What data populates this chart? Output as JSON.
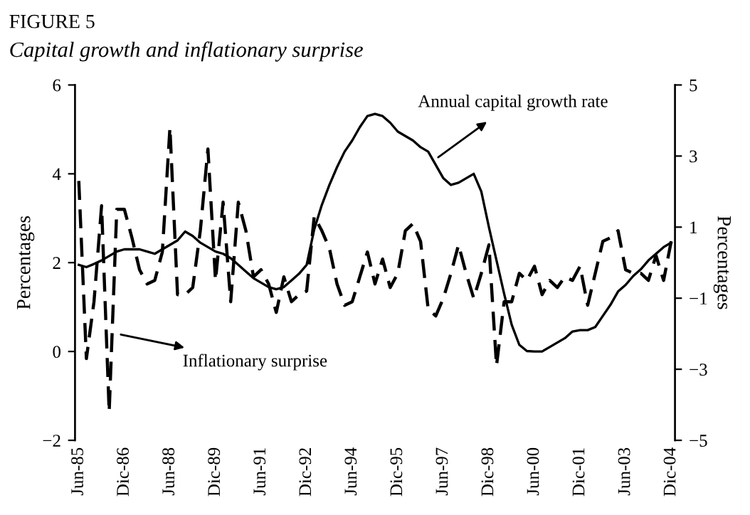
{
  "chart_data": {
    "type": "line",
    "title": "FIGURE 5",
    "subtitle": "Capital growth and inflationary surprise",
    "ylabel": "Percentages",
    "y2label": "Percentages",
    "categories": [
      "Jun-85",
      null,
      null,
      null,
      null,
      null,
      "Dic-86",
      null,
      null,
      null,
      null,
      null,
      "Jun-88",
      null,
      null,
      null,
      null,
      null,
      "Dic-89",
      null,
      null,
      null,
      null,
      null,
      "Jun-91",
      null,
      null,
      null,
      null,
      null,
      "Dic-92",
      null,
      null,
      null,
      null,
      null,
      "Jun-94",
      null,
      null,
      null,
      null,
      null,
      "Dic-95",
      null,
      null,
      null,
      null,
      null,
      "Jun-97",
      null,
      null,
      null,
      null,
      null,
      "Dic-98",
      null,
      null,
      null,
      null,
      null,
      "Jun-00",
      null,
      null,
      null,
      null,
      null,
      "Dic-01",
      null,
      null,
      null,
      null,
      null,
      "Jun-03",
      null,
      null,
      null,
      null,
      null,
      "Dic-04"
    ],
    "series": [
      {
        "color": "#000000",
        "line_style": "solid",
        "values": [
          1.95,
          1.9,
          1.97,
          2.05,
          2.15,
          2.25,
          2.3,
          2.3,
          2.3,
          2.25,
          2.2,
          2.3,
          2.4,
          2.5,
          2.7,
          2.6,
          2.45,
          2.35,
          2.25,
          2.2,
          2.1,
          1.95,
          1.8,
          1.65,
          1.55,
          1.45,
          1.4,
          1.45,
          1.6,
          1.75,
          1.95,
          2.75,
          3.3,
          3.75,
          4.15,
          4.5,
          4.75,
          5.05,
          5.3,
          5.35,
          5.3,
          5.15,
          4.95,
          4.85,
          4.75,
          4.6,
          4.5,
          4.2,
          3.9,
          3.75,
          3.8,
          3.9,
          4.0,
          3.6,
          2.8,
          2.05,
          1.3,
          0.6,
          0.15,
          0.01,
          0,
          0,
          0.1,
          0.2,
          0.3,
          0.45,
          0.48,
          0.48,
          0.55,
          0.8,
          1.05,
          1.35,
          1.5,
          1.7,
          1.85,
          2.05,
          2.2,
          2.35,
          2.45
        ]
      },
      {
        "color": "#000000",
        "line_style": "dashed",
        "axis": "y2",
        "values": [
          2.3,
          -2.7,
          -1.1,
          1.6,
          -4.2,
          1.5,
          1.5,
          0.7,
          -0.2,
          -0.6,
          -0.5,
          0.3,
          3.8,
          -0.9,
          -0.9,
          -0.7,
          0.9,
          3.2,
          -0.5,
          1.7,
          -1.1,
          1.7,
          0.9,
          -0.4,
          -0.2,
          -0.6,
          -1.4,
          -0.4,
          -1.1,
          -0.9,
          -0.8,
          1.3,
          0.9,
          0.4,
          -0.6,
          -1.2,
          -1.1,
          -0.4,
          0.3,
          -0.6,
          0.1,
          -0.7,
          -0.3,
          0.9,
          1.1,
          0.6,
          -1.3,
          -1.5,
          -1.0,
          -0.3,
          0.5,
          -0.3,
          -1.0,
          -0.3,
          0.5,
          -2.9,
          -1.1,
          -1.1,
          -0.3,
          -0.5,
          -0.1,
          -0.9,
          -0.5,
          -0.7,
          -0.4,
          -0.5,
          -0.1,
          -1.2,
          -0.3,
          0.6,
          0.7,
          0.9,
          -0.2,
          -0.3,
          -0.3,
          -0.5,
          0.2,
          -0.5,
          0.6
        ]
      }
    ],
    "ylim": [
      -2,
      6
    ],
    "yticks": [
      -2,
      0,
      2,
      4,
      6
    ],
    "y2lim": [
      -5,
      5
    ],
    "y2ticks": [
      -5,
      -3,
      -1,
      1,
      3,
      5
    ],
    "annotations": [
      "Annual capital growth rate",
      "Inflationary surprise"
    ],
    "grid": false,
    "legend": false,
    "marker": "none"
  }
}
